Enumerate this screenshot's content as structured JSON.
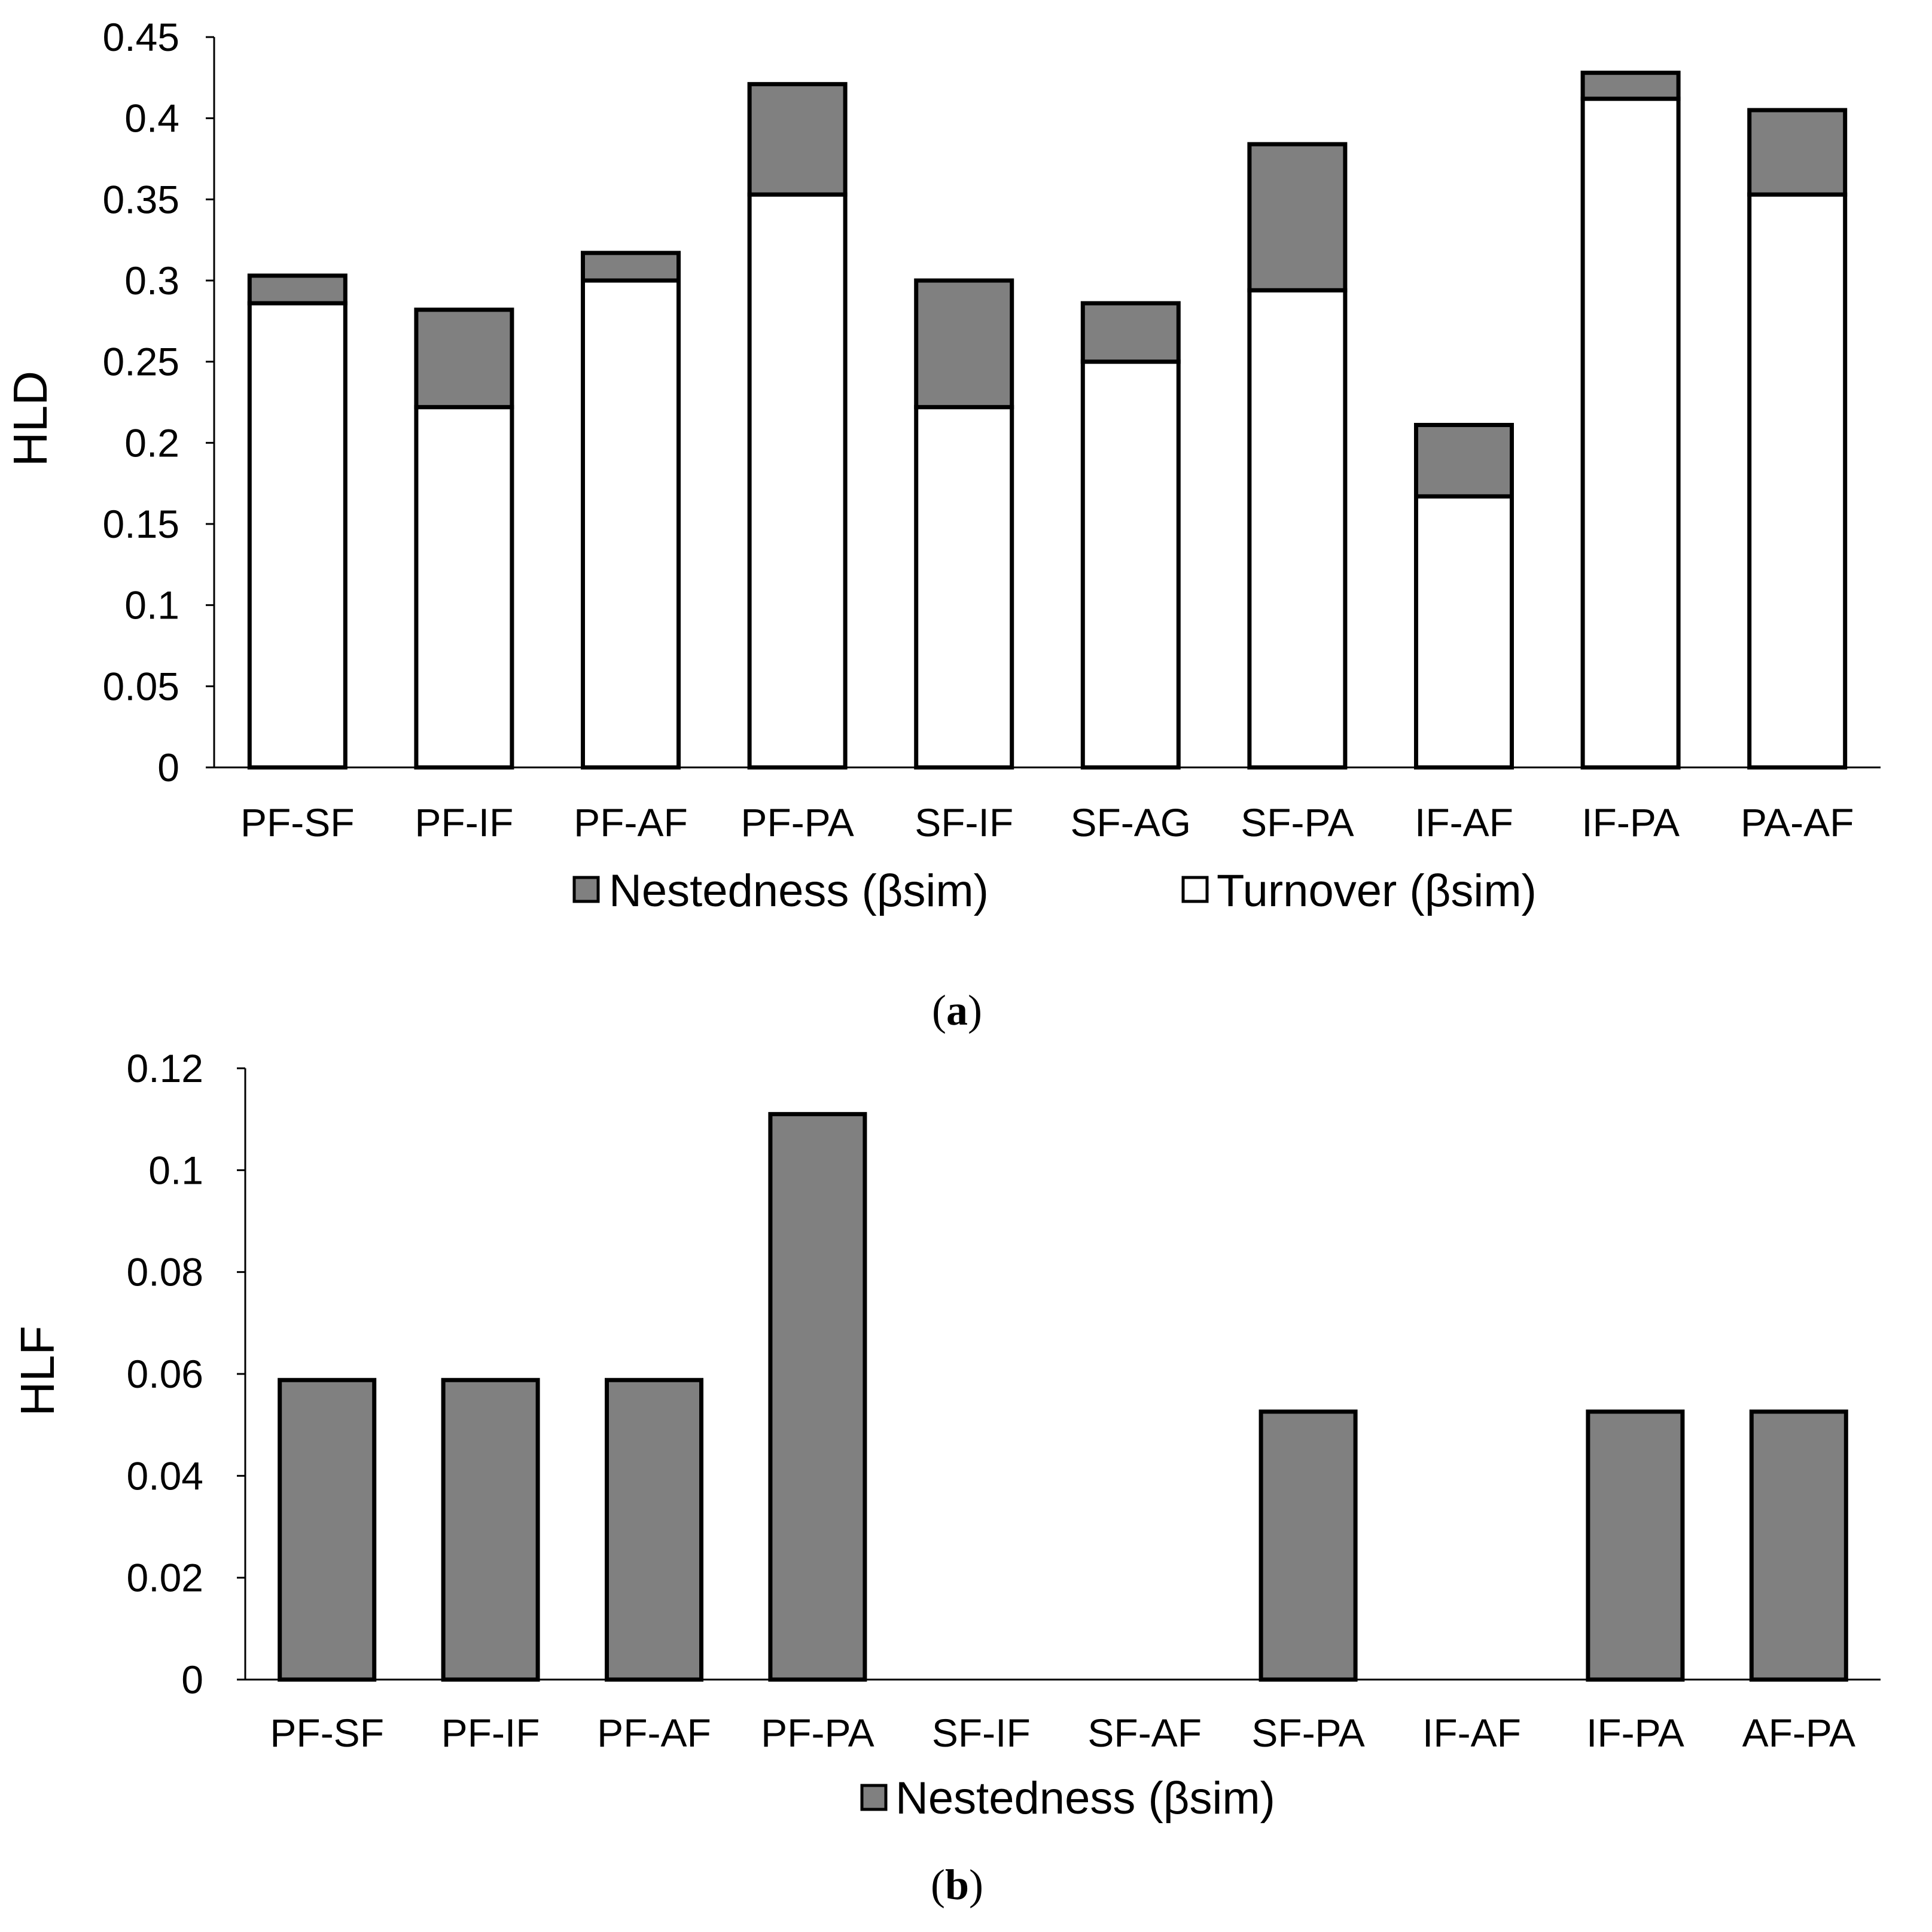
{
  "chart_data": [
    {
      "type": "bar",
      "stacked": true,
      "panel": "a",
      "caption_open": "(",
      "caption_letter": "a",
      "caption_close": ")",
      "ylabel": "HLD",
      "xlabel": "",
      "ylim": [
        0,
        0.45
      ],
      "yticks": [
        "0",
        "0.05",
        "0.1",
        "0.15",
        "0.2",
        "0.25",
        "0.3",
        "0.35",
        "0.4",
        "0.45"
      ],
      "ytick_values": [
        0,
        0.05,
        0.1,
        0.15,
        0.2,
        0.25,
        0.3,
        0.35,
        0.4,
        0.45
      ],
      "categories": [
        "PF-SF",
        "PF-IF",
        "PF-AF",
        "PF-PA",
        "SF-IF",
        "SF-AG",
        "SF-PA",
        "IF-AF",
        "IF-PA",
        "PA-AF"
      ],
      "series": [
        {
          "name": "Turnover (βsim)",
          "color": "#ffffff",
          "values": [
            0.286,
            0.222,
            0.3,
            0.353,
            0.222,
            0.25,
            0.294,
            0.167,
            0.412,
            0.353
          ]
        },
        {
          "name": "Nestedness (βsim)",
          "color": "#808080",
          "values": [
            0.017,
            0.06,
            0.017,
            0.068,
            0.078,
            0.036,
            0.09,
            0.044,
            0.016,
            0.052
          ]
        }
      ],
      "legend": [
        "Nestedness (βsim)",
        "Turnover (βsim)"
      ],
      "legend_position": "bottom"
    },
    {
      "type": "bar",
      "stacked": false,
      "panel": "b",
      "caption_open": "(",
      "caption_letter": "b",
      "caption_close": ")",
      "ylabel": "HLF",
      "xlabel": "",
      "ylim": [
        0,
        0.12
      ],
      "yticks": [
        "0",
        "0.02",
        "0.04",
        "0.06",
        "0.08",
        "0.1",
        "0.12"
      ],
      "ytick_values": [
        0,
        0.02,
        0.04,
        0.06,
        0.08,
        0.1,
        0.12
      ],
      "categories": [
        "PF-SF",
        "PF-IF",
        "PF-AF",
        "PF-PA",
        "SF-IF",
        "SF-AF",
        "SF-PA",
        "IF-AF",
        "IF-PA",
        "AF-PA"
      ],
      "series": [
        {
          "name": "Nestedness (βsim)",
          "color": "#808080",
          "values": [
            0.0588,
            0.0588,
            0.0588,
            0.111,
            0,
            0,
            0.0526,
            0,
            0.0526,
            0.0526
          ]
        }
      ],
      "legend": [
        "Nestedness (βsim)"
      ],
      "legend_position": "bottom"
    }
  ]
}
